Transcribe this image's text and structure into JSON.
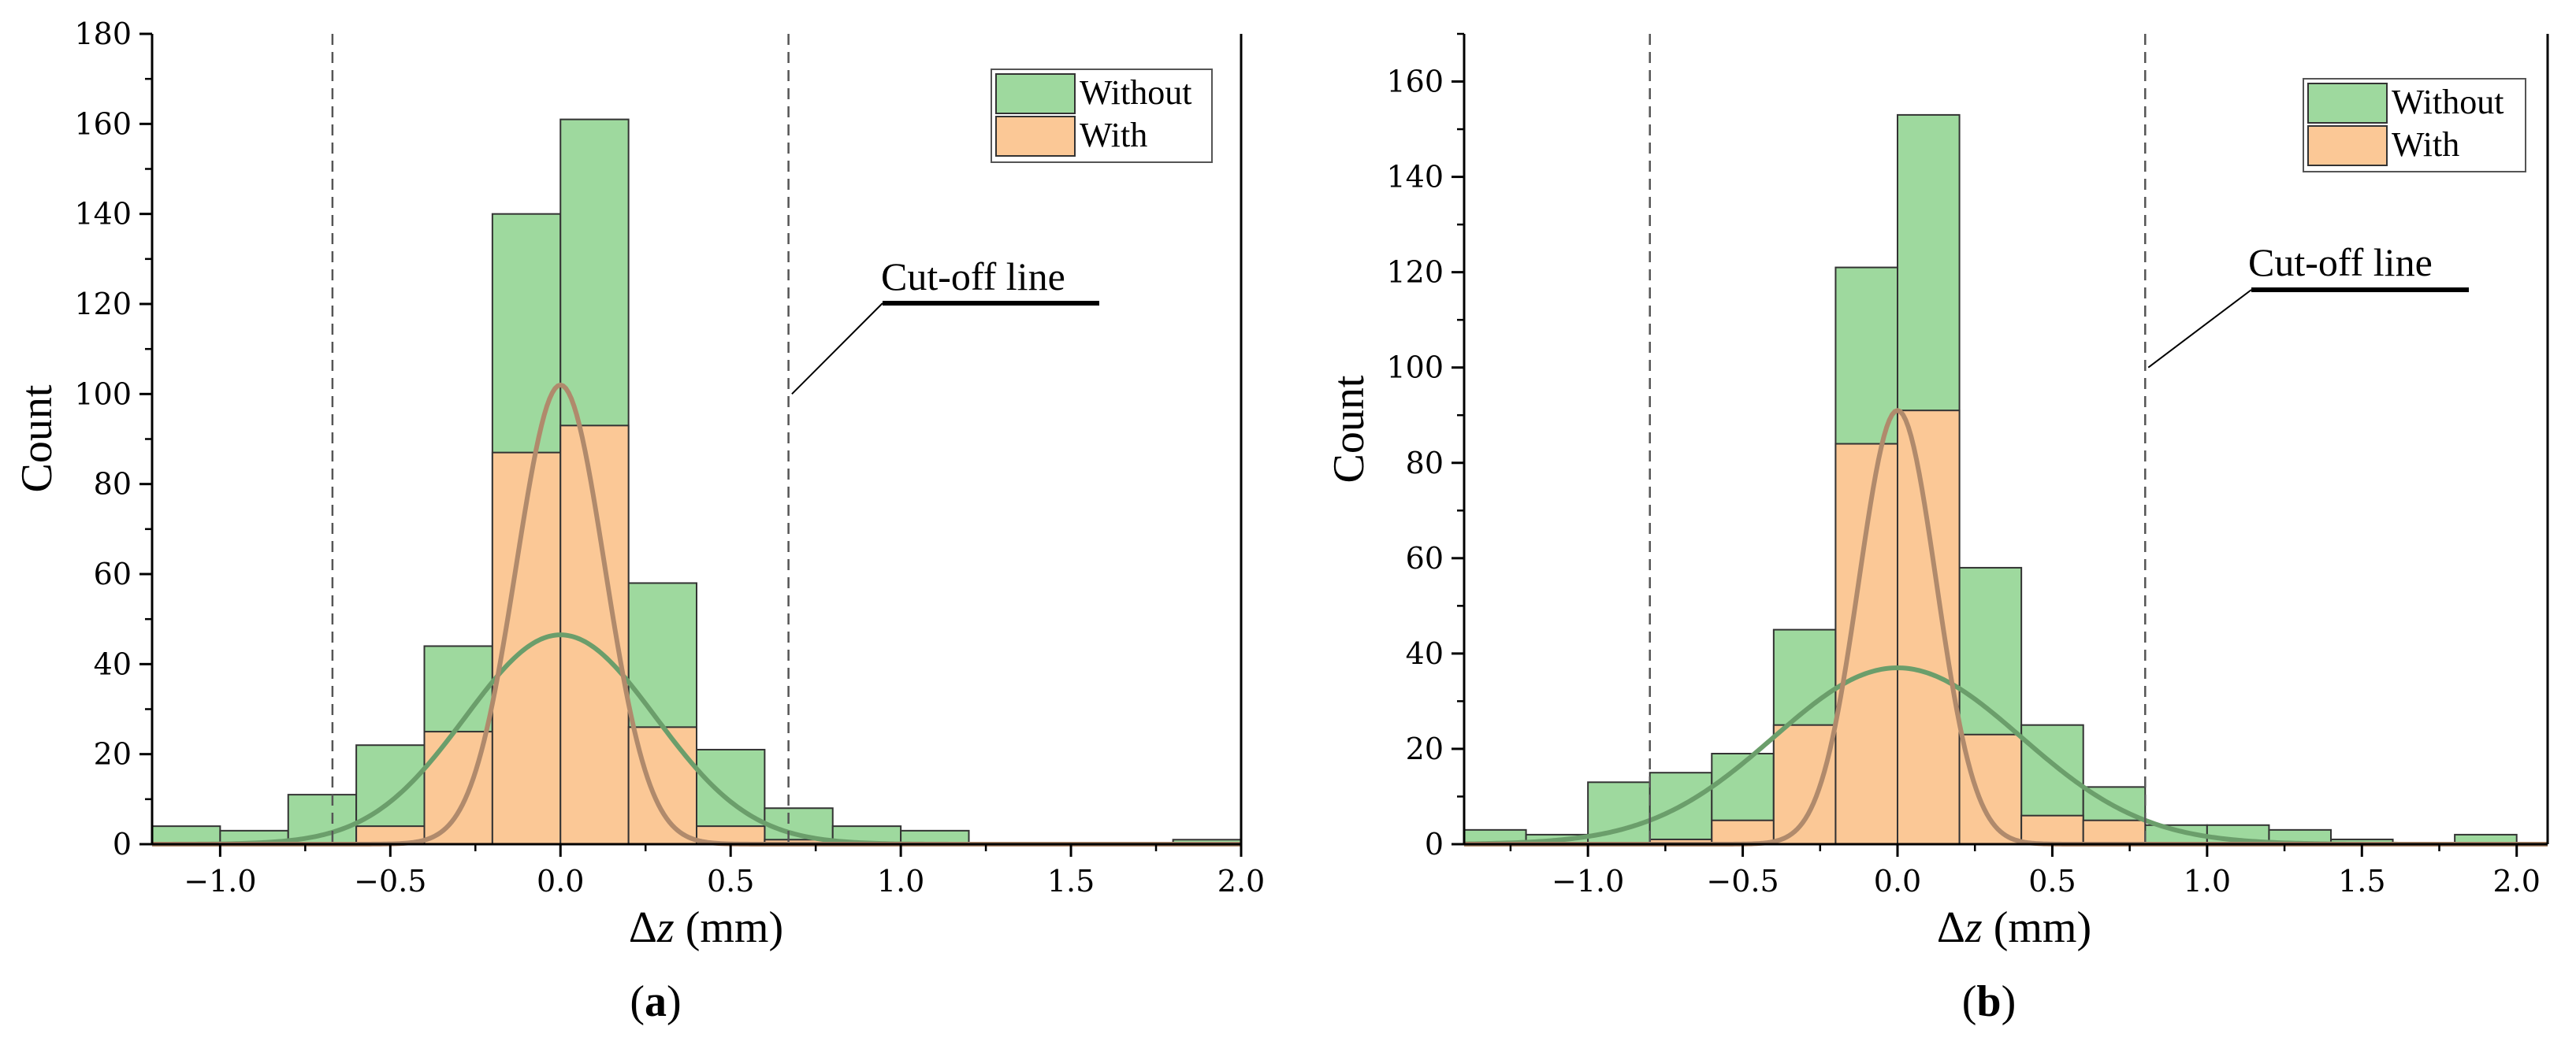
{
  "chart_data": [
    {
      "type": "bar",
      "panel_label": "a",
      "xlabel_prefix": "Δ",
      "xlabel_var": "z",
      "xlabel_suffix": " (mm)",
      "ylabel": "Count",
      "xlim": [
        -1.2,
        2.0
      ],
      "ylim": [
        0,
        180
      ],
      "xticks": [
        -1.0,
        -0.5,
        0.0,
        0.5,
        1.0,
        1.5,
        2.0
      ],
      "xtick_labels": [
        "−1.0",
        "−0.5",
        "0.0",
        "0.5",
        "1.0",
        "1.5",
        "2.0"
      ],
      "yticks": [
        0,
        20,
        40,
        60,
        80,
        100,
        120,
        140,
        160,
        180
      ],
      "ytick_labels": [
        "0",
        "20",
        "40",
        "60",
        "80",
        "100",
        "120",
        "140",
        "160",
        "180"
      ],
      "bin_width": 0.2,
      "series": [
        {
          "name": "Without",
          "color": "#9ed99e",
          "bins": [
            {
              "start": -1.2,
              "value": 4
            },
            {
              "start": -1.0,
              "value": 3
            },
            {
              "start": -0.8,
              "value": 11
            },
            {
              "start": -0.6,
              "value": 22
            },
            {
              "start": -0.4,
              "value": 44
            },
            {
              "start": -0.2,
              "value": 140
            },
            {
              "start": 0.0,
              "value": 161
            },
            {
              "start": 0.2,
              "value": 58
            },
            {
              "start": 0.4,
              "value": 21
            },
            {
              "start": 0.6,
              "value": 8
            },
            {
              "start": 0.8,
              "value": 4
            },
            {
              "start": 1.0,
              "value": 3
            },
            {
              "start": 1.8,
              "value": 1
            }
          ],
          "fit": {
            "mean": 0.0,
            "peak": 46.5,
            "sigma": 0.28,
            "color": "#6b9e6b"
          }
        },
        {
          "name": "With",
          "color": "#fbc896",
          "bins": [
            {
              "start": -0.6,
              "value": 4
            },
            {
              "start": -0.4,
              "value": 25
            },
            {
              "start": -0.2,
              "value": 87
            },
            {
              "start": 0.0,
              "value": 93
            },
            {
              "start": 0.2,
              "value": 26
            },
            {
              "start": 0.4,
              "value": 4
            },
            {
              "start": 0.6,
              "value": 1
            }
          ],
          "fit": {
            "mean": 0.0,
            "peak": 102,
            "sigma": 0.13,
            "color": "#b08a6c"
          }
        }
      ],
      "cutoff_lines": [
        -0.67,
        0.67
      ],
      "cutoff_label": "Cut-off line",
      "cutoff_pointer_target": 0.68,
      "cutoff_pointer_y": 100,
      "legend_position": "top-right"
    },
    {
      "type": "bar",
      "panel_label": "b",
      "xlabel_prefix": "Δ",
      "xlabel_var": "z",
      "xlabel_suffix": " (mm)",
      "ylabel": "Count",
      "xlim": [
        -1.4,
        2.1
      ],
      "ylim": [
        0,
        170
      ],
      "xticks": [
        -1.0,
        -0.5,
        0.0,
        0.5,
        1.0,
        1.5,
        2.0
      ],
      "xtick_labels": [
        "−1.0",
        "−0.5",
        "0.0",
        "0.5",
        "1.0",
        "1.5",
        "2.0"
      ],
      "yticks": [
        0,
        20,
        40,
        60,
        80,
        100,
        120,
        140,
        160
      ],
      "ytick_labels": [
        "0",
        "20",
        "40",
        "60",
        "80",
        "100",
        "120",
        "140",
        "160"
      ],
      "bin_width": 0.2,
      "series": [
        {
          "name": "Without",
          "color": "#9ed99e",
          "bins": [
            {
              "start": -1.4,
              "value": 3
            },
            {
              "start": -1.2,
              "value": 2
            },
            {
              "start": -1.0,
              "value": 13
            },
            {
              "start": -0.8,
              "value": 15
            },
            {
              "start": -0.6,
              "value": 19
            },
            {
              "start": -0.4,
              "value": 45
            },
            {
              "start": -0.2,
              "value": 121
            },
            {
              "start": 0.0,
              "value": 153
            },
            {
              "start": 0.2,
              "value": 58
            },
            {
              "start": 0.4,
              "value": 25
            },
            {
              "start": 0.6,
              "value": 12
            },
            {
              "start": 0.8,
              "value": 4
            },
            {
              "start": 1.0,
              "value": 4
            },
            {
              "start": 1.2,
              "value": 3
            },
            {
              "start": 1.4,
              "value": 1
            },
            {
              "start": 1.8,
              "value": 2
            }
          ],
          "fit": {
            "mean": 0.0,
            "peak": 37,
            "sigma": 0.4,
            "color": "#6b9e6b"
          }
        },
        {
          "name": "With",
          "color": "#fbc896",
          "bins": [
            {
              "start": -0.8,
              "value": 1
            },
            {
              "start": -0.6,
              "value": 5
            },
            {
              "start": -0.4,
              "value": 25
            },
            {
              "start": -0.2,
              "value": 84
            },
            {
              "start": 0.0,
              "value": 91
            },
            {
              "start": 0.2,
              "value": 23
            },
            {
              "start": 0.4,
              "value": 6
            },
            {
              "start": 0.6,
              "value": 5
            }
          ],
          "fit": {
            "mean": 0.0,
            "peak": 91,
            "sigma": 0.125,
            "color": "#b08a6c"
          }
        }
      ],
      "cutoff_lines": [
        -0.8,
        0.8
      ],
      "cutoff_label": "Cut-off line",
      "cutoff_pointer_target": 0.81,
      "cutoff_pointer_y": 100,
      "legend_position": "top-right"
    }
  ]
}
